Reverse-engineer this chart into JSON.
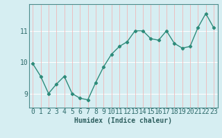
{
  "x": [
    0,
    1,
    2,
    3,
    4,
    5,
    6,
    7,
    8,
    9,
    10,
    11,
    12,
    13,
    14,
    15,
    16,
    17,
    18,
    19,
    20,
    21,
    22,
    23
  ],
  "y": [
    9.95,
    9.55,
    9.0,
    9.3,
    9.55,
    9.0,
    8.85,
    8.8,
    9.35,
    9.85,
    10.25,
    10.5,
    10.65,
    11.0,
    11.0,
    10.75,
    10.7,
    11.0,
    10.6,
    10.45,
    10.5,
    11.1,
    11.55,
    11.1
  ],
  "line_color": "#2e8b7a",
  "bg_color": "#d6eef2",
  "hgrid_color": "#ffffff",
  "vgrid_color": "#f0b8b8",
  "xlabel": "Humidex (Indice chaleur)",
  "ylabel_ticks": [
    9,
    10,
    11
  ],
  "xlim": [
    -0.5,
    23.5
  ],
  "ylim": [
    8.55,
    11.85
  ],
  "xlabel_fontsize": 7,
  "tick_fontsize": 7,
  "line_color2": "#2e6b6b",
  "xlabel_color": "#2e5f5f"
}
